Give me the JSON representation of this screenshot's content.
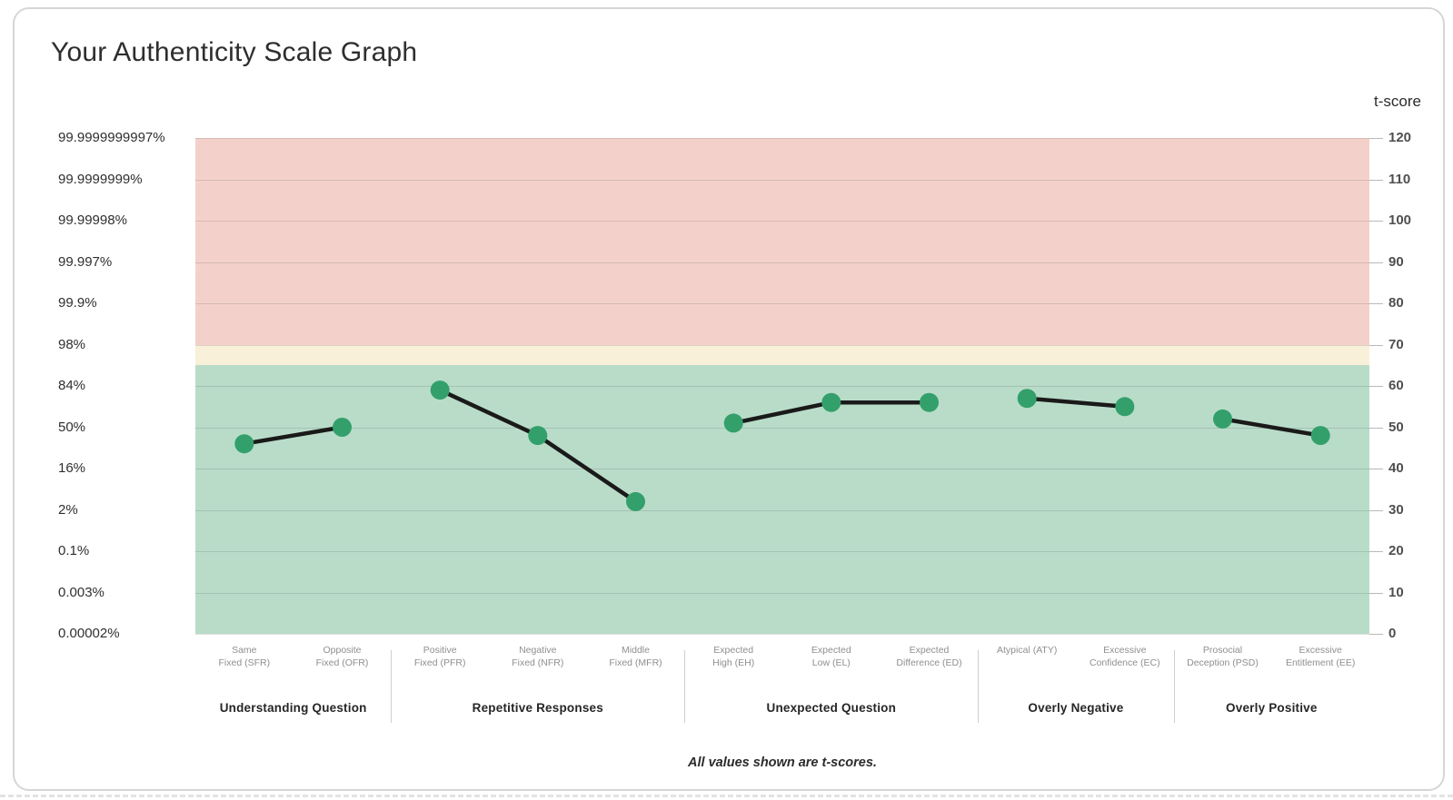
{
  "card": {
    "title": "Your Authenticity Scale Graph",
    "footnote": "All values shown are t-scores."
  },
  "chart_data": {
    "type": "line",
    "title": "Your Authenticity Scale Graph",
    "right_axis_label": "t-score",
    "ylim": [
      0,
      120
    ],
    "grid": true,
    "line_color": "#1a1a1a",
    "point_color": "#33a06c",
    "bands": [
      {
        "name": "elevated",
        "from": 70,
        "to": 120,
        "color": "#f3d1ca"
      },
      {
        "name": "caution",
        "from": 65,
        "to": 70,
        "color": "#f8f0d8"
      },
      {
        "name": "normal",
        "from": 0,
        "to": 65,
        "color": "#b9dcc9"
      }
    ],
    "axis_rows": [
      {
        "t": 120,
        "percentile": "99.9999999997%"
      },
      {
        "t": 110,
        "percentile": "99.9999999%"
      },
      {
        "t": 100,
        "percentile": "99.99998%"
      },
      {
        "t": 90,
        "percentile": "99.997%"
      },
      {
        "t": 80,
        "percentile": "99.9%"
      },
      {
        "t": 70,
        "percentile": "98%"
      },
      {
        "t": 60,
        "percentile": "84%"
      },
      {
        "t": 50,
        "percentile": "50%"
      },
      {
        "t": 40,
        "percentile": "16%"
      },
      {
        "t": 30,
        "percentile": "2%"
      },
      {
        "t": 20,
        "percentile": "0.1%"
      },
      {
        "t": 10,
        "percentile": "0.003%"
      },
      {
        "t": 0,
        "percentile": "0.00002%"
      }
    ],
    "groups": [
      {
        "label": "Understanding Question",
        "points": [
          {
            "code": "SFR",
            "label_lines": [
              "Same",
              "Fixed (SFR)"
            ],
            "t": 46
          },
          {
            "code": "OFR",
            "label_lines": [
              "Opposite",
              "Fixed (OFR)"
            ],
            "t": 50
          }
        ]
      },
      {
        "label": "Repetitive Responses",
        "points": [
          {
            "code": "PFR",
            "label_lines": [
              "Positive",
              "Fixed (PFR)"
            ],
            "t": 59
          },
          {
            "code": "NFR",
            "label_lines": [
              "Negative",
              "Fixed (NFR)"
            ],
            "t": 48
          },
          {
            "code": "MFR",
            "label_lines": [
              "Middle",
              "Fixed (MFR)"
            ],
            "t": 32
          }
        ]
      },
      {
        "label": "Unexpected Question",
        "points": [
          {
            "code": "EH",
            "label_lines": [
              "Expected",
              "High (EH)"
            ],
            "t": 51
          },
          {
            "code": "EL",
            "label_lines": [
              "Expected",
              "Low (EL)"
            ],
            "t": 56
          },
          {
            "code": "ED",
            "label_lines": [
              "Expected",
              "Difference (ED)"
            ],
            "t": 56
          }
        ]
      },
      {
        "label": "Overly Negative",
        "points": [
          {
            "code": "ATY",
            "label_lines": [
              "Atypical (ATY)"
            ],
            "t": 57
          },
          {
            "code": "EC",
            "label_lines": [
              "Excessive",
              "Confidence (EC)"
            ],
            "t": 55
          }
        ]
      },
      {
        "label": "Overly Positive",
        "points": [
          {
            "code": "PSD",
            "label_lines": [
              "Prosocial",
              "Deception (PSD)"
            ],
            "t": 52
          },
          {
            "code": "EE",
            "label_lines": [
              "Excessive",
              "Entitlement (EE)"
            ],
            "t": 48
          }
        ]
      }
    ]
  }
}
